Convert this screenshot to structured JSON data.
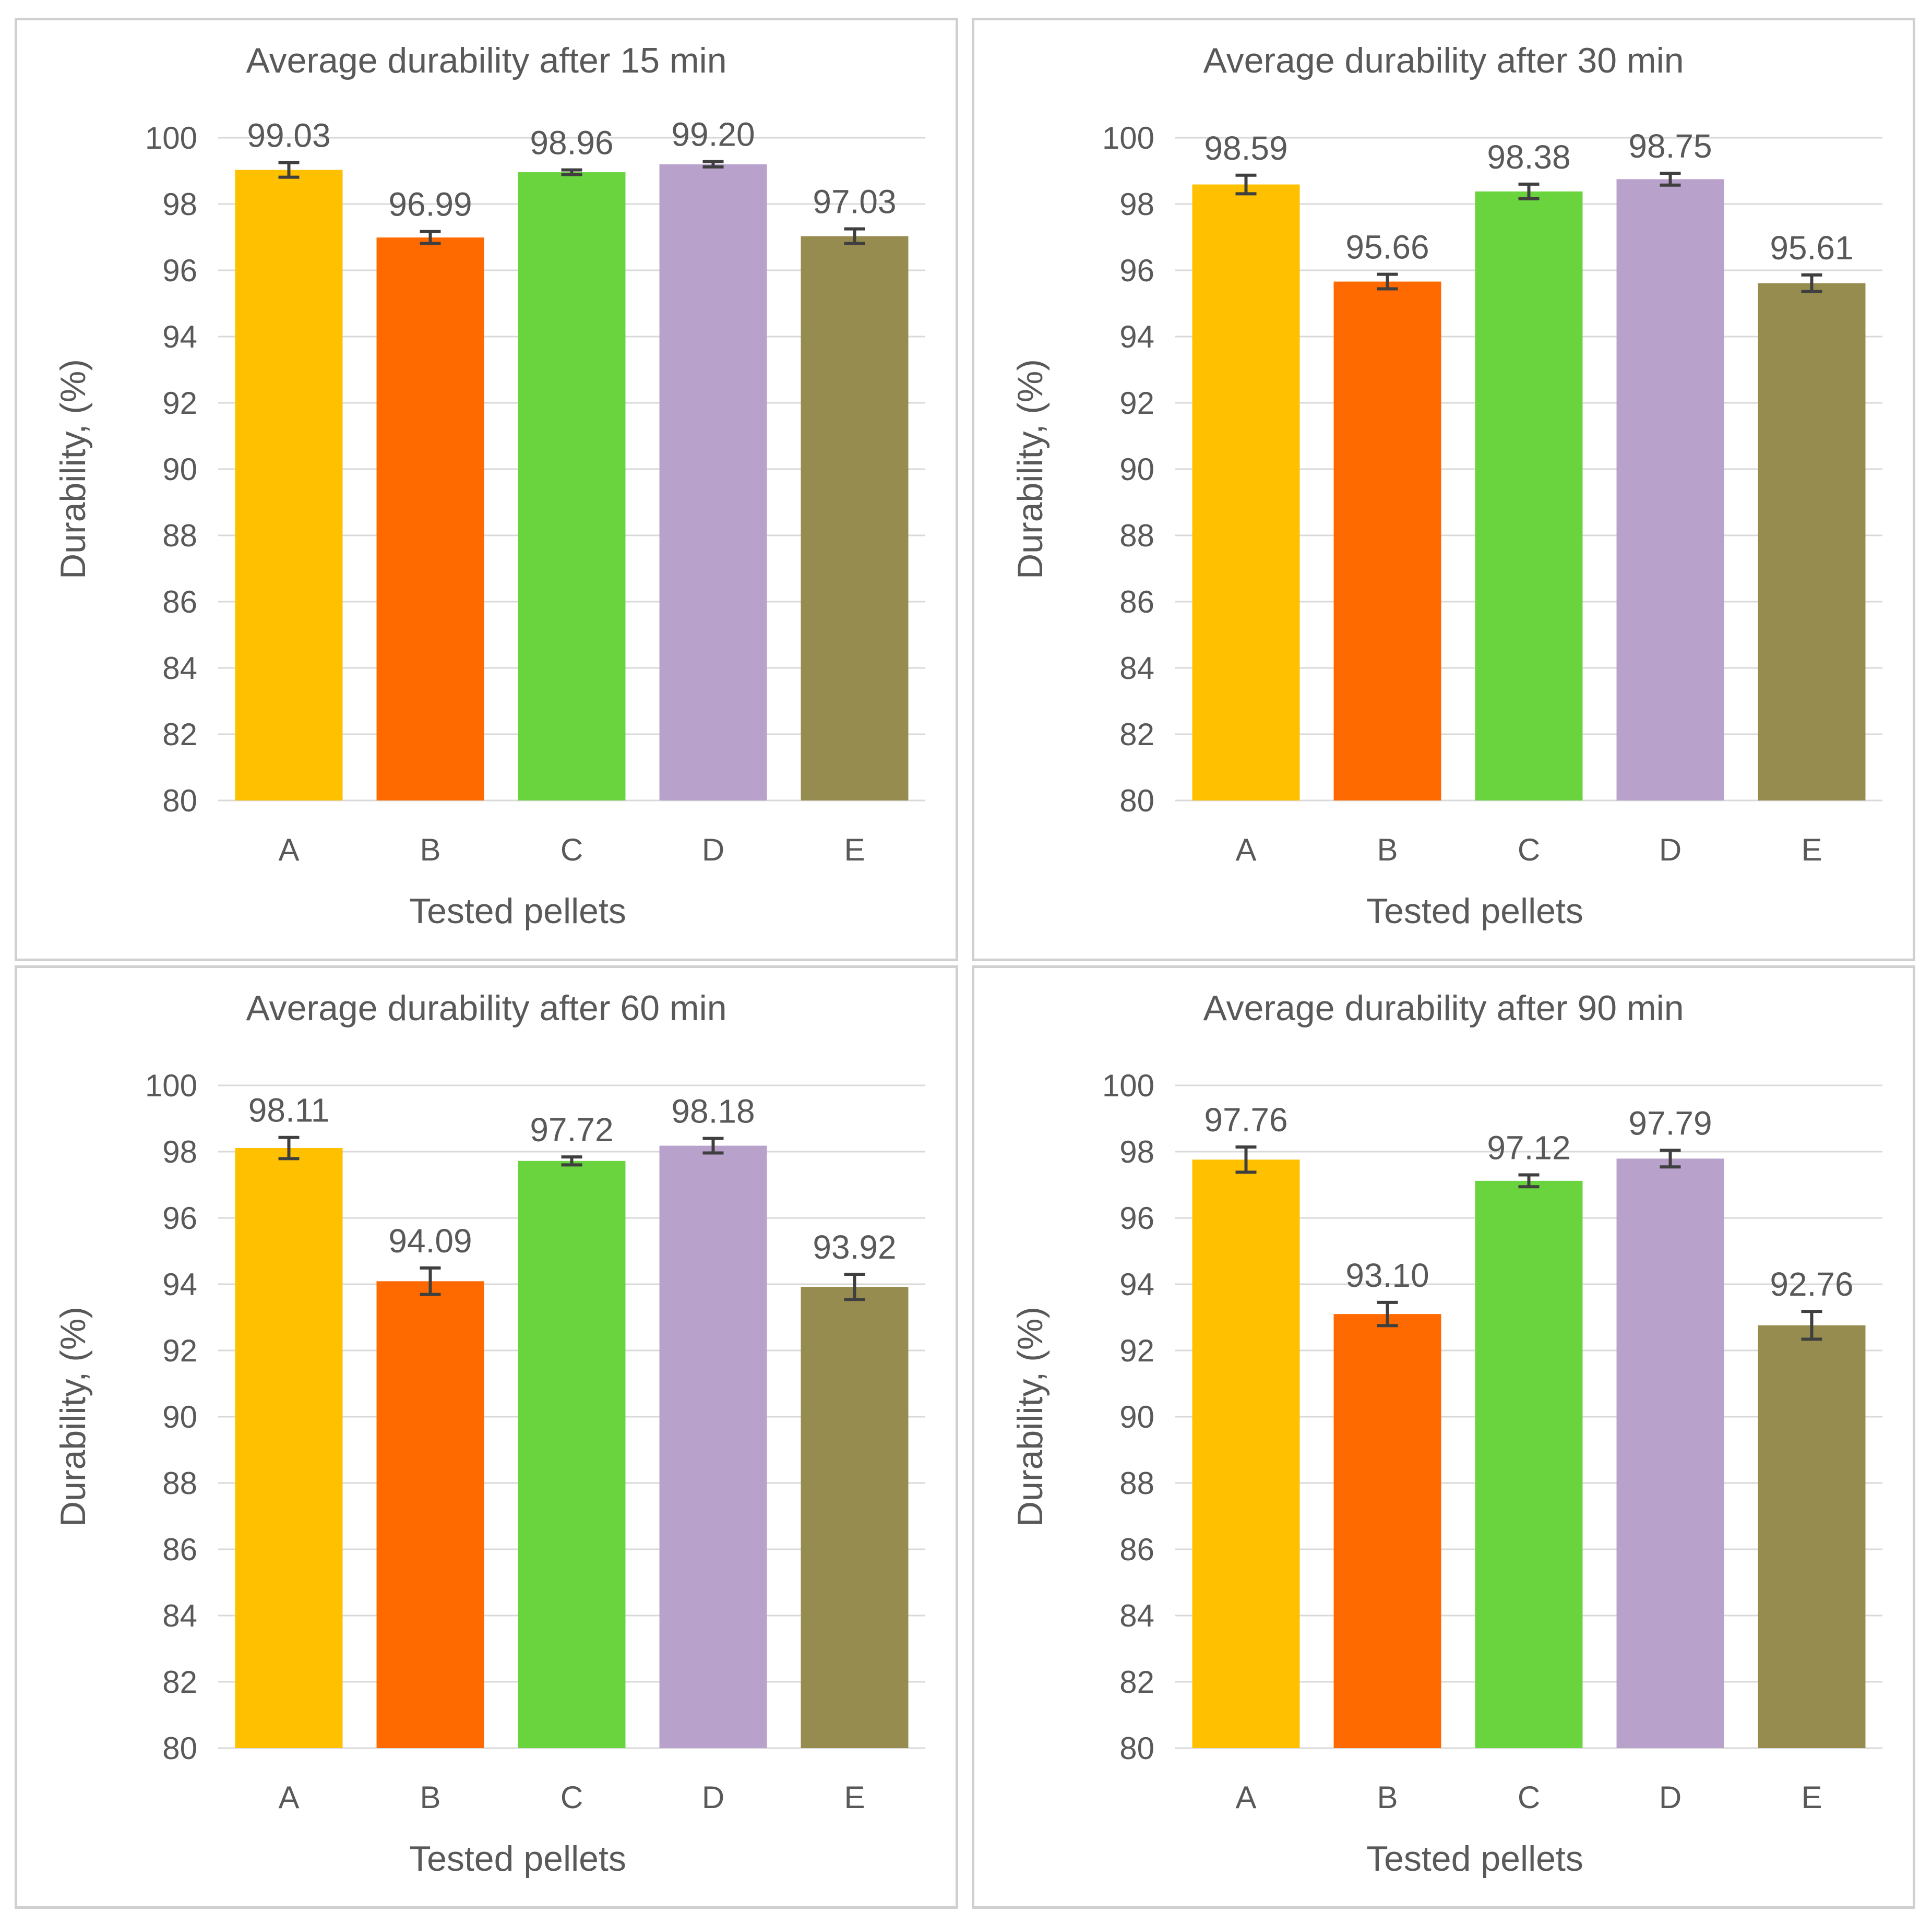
{
  "chart_data": [
    {
      "type": "bar",
      "title": "Average durability after 15 min",
      "xlabel": "Tested pellets",
      "ylabel": "Durability, (%)",
      "categories": [
        "A",
        "B",
        "C",
        "D",
        "E"
      ],
      "values": [
        99.03,
        96.99,
        98.96,
        99.2,
        97.03
      ],
      "value_labels": [
        "99.03",
        "96.99",
        "98.96",
        "99.20",
        "97.03"
      ],
      "error": [
        0.22,
        0.18,
        0.07,
        0.08,
        0.22
      ],
      "ylim": [
        80,
        100
      ],
      "yticks": [
        "80",
        "82",
        "84",
        "86",
        "88",
        "90",
        "92",
        "94",
        "96",
        "98",
        "100"
      ],
      "grid": true
    },
    {
      "type": "bar",
      "title": "Average durability after 30 min",
      "xlabel": "Tested pellets",
      "ylabel": "Durability, (%)",
      "categories": [
        "A",
        "B",
        "C",
        "D",
        "E"
      ],
      "values": [
        98.59,
        95.66,
        98.38,
        98.75,
        95.61
      ],
      "value_labels": [
        "98.59",
        "95.66",
        "98.38",
        "98.75",
        "95.61"
      ],
      "error": [
        0.28,
        0.22,
        0.22,
        0.18,
        0.25
      ],
      "ylim": [
        80,
        100
      ],
      "yticks": [
        "80",
        "82",
        "84",
        "86",
        "88",
        "90",
        "92",
        "94",
        "96",
        "98",
        "100"
      ],
      "grid": true
    },
    {
      "type": "bar",
      "title": "Average durability after 60 min",
      "xlabel": "Tested pellets",
      "ylabel": "Durability, (%)",
      "categories": [
        "A",
        "B",
        "C",
        "D",
        "E"
      ],
      "values": [
        98.11,
        94.09,
        97.72,
        98.18,
        93.92
      ],
      "value_labels": [
        "98.11",
        "94.09",
        "97.72",
        "98.18",
        "93.92"
      ],
      "error": [
        0.32,
        0.4,
        0.12,
        0.22,
        0.38
      ],
      "ylim": [
        80,
        100
      ],
      "yticks": [
        "80",
        "82",
        "84",
        "86",
        "88",
        "90",
        "92",
        "94",
        "96",
        "98",
        "100"
      ],
      "grid": true
    },
    {
      "type": "bar",
      "title": "Average durability after 90 min",
      "xlabel": "Tested pellets",
      "ylabel": "Durability, (%)",
      "categories": [
        "A",
        "B",
        "C",
        "D",
        "E"
      ],
      "values": [
        97.76,
        93.1,
        97.12,
        97.79,
        92.76
      ],
      "value_labels": [
        "97.76",
        "93.10",
        "97.12",
        "97.79",
        "92.76"
      ],
      "error": [
        0.38,
        0.35,
        0.18,
        0.25,
        0.42
      ],
      "ylim": [
        80,
        100
      ],
      "yticks": [
        "80",
        "82",
        "84",
        "86",
        "88",
        "90",
        "92",
        "94",
        "96",
        "98",
        "100"
      ],
      "grid": true
    }
  ],
  "colors": {
    "bars": [
      "#ffc000",
      "#ff6a00",
      "#6ad43f",
      "#b8a1cb",
      "#978c4f"
    ],
    "error_bars": "#3f3f3f",
    "gridlines": "#d9d9d9",
    "text": "#595959"
  }
}
